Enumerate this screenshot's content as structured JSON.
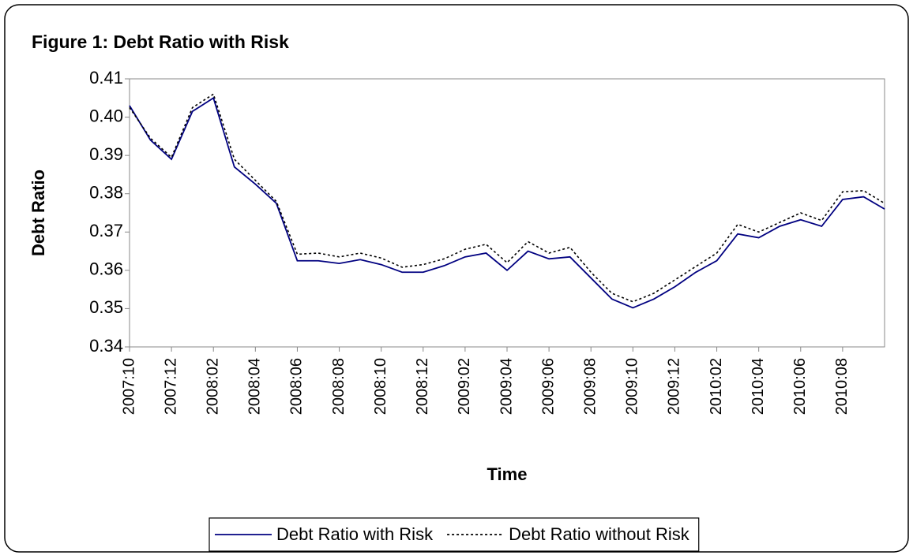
{
  "chart_data": {
    "type": "line",
    "title": "Figure 1: Debt Ratio with Risk",
    "x_label": "Time",
    "y_label": "Debt Ratio",
    "categories": [
      "2007:10",
      null,
      "2007:12",
      null,
      "2008:02",
      null,
      "2008:04",
      null,
      "2008:06",
      null,
      "2008:08",
      null,
      "2008:10",
      null,
      "2008:12",
      null,
      "2009:02",
      null,
      "2009:04",
      null,
      "2009:06",
      null,
      "2009:08",
      null,
      "2009:10",
      null,
      "2009:12",
      null,
      "2010:02",
      null,
      "2010:04",
      null,
      "2010:06",
      null,
      "2010:08",
      null,
      null
    ],
    "series": [
      {
        "name": "Debt Ratio with Risk",
        "color": "#000080",
        "dash": "solid",
        "values": [
          0.403,
          0.394,
          0.389,
          0.4015,
          0.405,
          0.387,
          0.3825,
          0.3775,
          0.3625,
          0.3625,
          0.3618,
          0.3628,
          0.3615,
          0.3595,
          0.3595,
          0.3612,
          0.3635,
          0.3645,
          0.36,
          0.365,
          0.363,
          0.3635,
          0.358,
          0.3525,
          0.3502,
          0.3525,
          0.3557,
          0.3595,
          0.3625,
          0.3695,
          0.3685,
          0.3715,
          0.3732,
          0.3715,
          0.3785,
          0.3792,
          0.376
        ]
      },
      {
        "name": "Debt Ratio without Risk",
        "color": "#000000",
        "dash": "dotted",
        "values": [
          0.4025,
          0.3945,
          0.3895,
          0.4025,
          0.406,
          0.389,
          0.3835,
          0.378,
          0.3642,
          0.3645,
          0.3635,
          0.3645,
          0.3632,
          0.3608,
          0.3615,
          0.363,
          0.3655,
          0.3668,
          0.362,
          0.3675,
          0.3645,
          0.366,
          0.3595,
          0.354,
          0.3518,
          0.354,
          0.3575,
          0.361,
          0.3645,
          0.372,
          0.37,
          0.3725,
          0.375,
          0.373,
          0.3805,
          0.3808,
          0.3775
        ]
      }
    ],
    "ylim": [
      0.34,
      0.41
    ],
    "yticks": [
      0.34,
      0.35,
      0.36,
      0.37,
      0.38,
      0.39,
      {
        "value": 0.4,
        "label": "0.40"
      },
      0.41
    ],
    "grid": false,
    "legend": "bottom"
  }
}
